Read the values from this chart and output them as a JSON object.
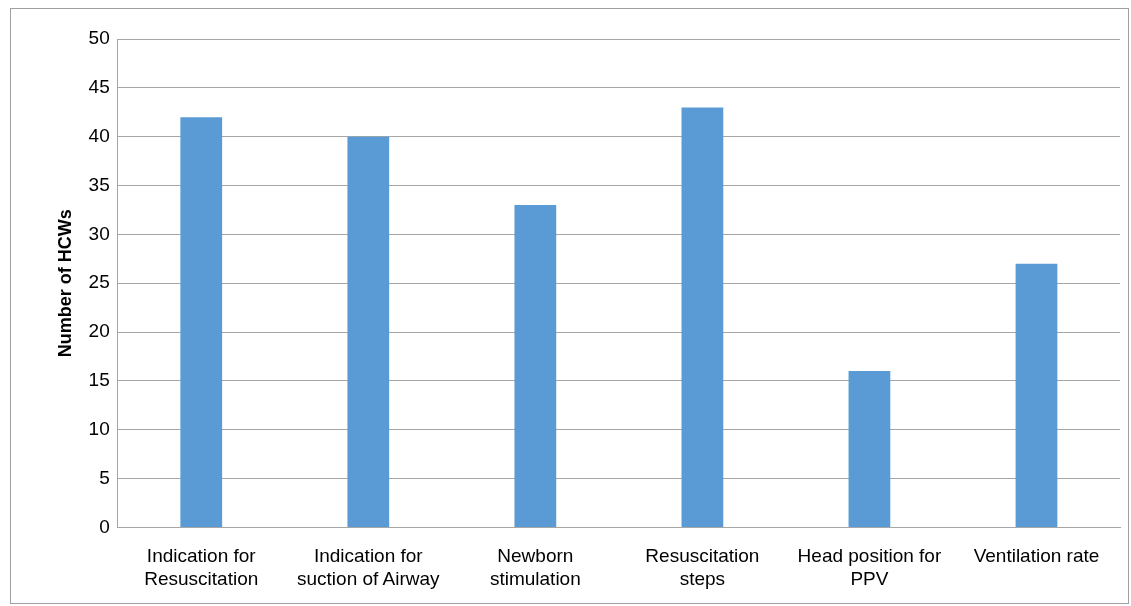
{
  "chart_data": {
    "type": "bar",
    "ylabel": "Number of HCWs",
    "categories": [
      "Indication for Resuscitation",
      "Indication for suction of Airway",
      "Newborn stimulation",
      "Resuscitation steps",
      "Head position for PPV",
      "Ventilation rate"
    ],
    "values": [
      42,
      40,
      33,
      43,
      16,
      27
    ],
    "color": "#5b9bd5",
    "ylim": [
      0,
      50
    ],
    "yticks": [
      0,
      5,
      10,
      15,
      20,
      25,
      30,
      35,
      40,
      45,
      50
    ],
    "grid": "y",
    "legend": false
  }
}
